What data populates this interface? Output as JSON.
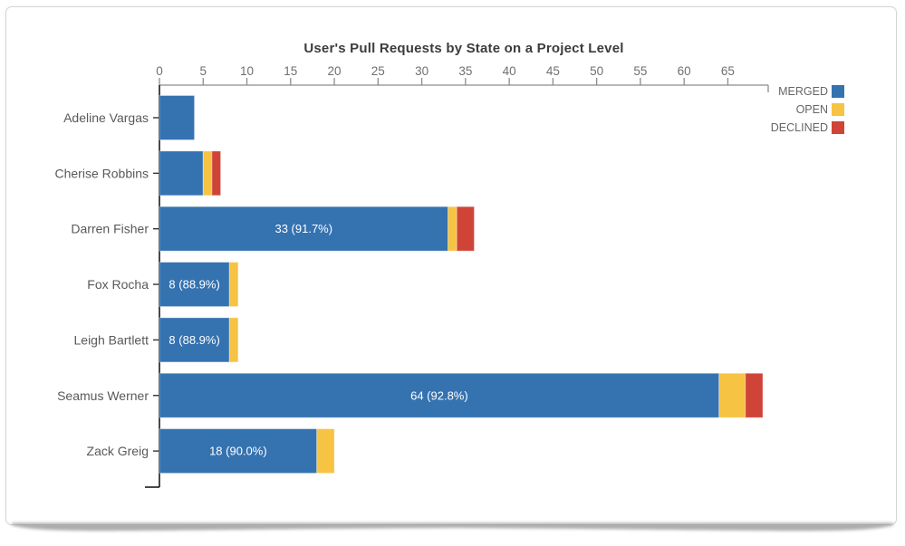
{
  "chart": {
    "title": "User's Pull Requests by State on a Project Level"
  },
  "chart_data": {
    "type": "bar",
    "orientation": "horizontal",
    "stacked": true,
    "title": "User's Pull Requests by State on a Project Level",
    "categories": [
      "Adeline Vargas",
      "Cherise Robbins",
      "Darren Fisher",
      "Fox Rocha",
      "Leigh Bartlett",
      "Seamus Werner",
      "Zack Greig"
    ],
    "series": [
      {
        "name": "MERGED",
        "color": "#3572b0",
        "values": [
          4,
          5,
          33,
          8,
          8,
          64,
          18
        ]
      },
      {
        "name": "OPEN",
        "color": "#f6c342",
        "values": [
          0,
          1,
          1,
          1,
          1,
          3,
          2
        ]
      },
      {
        "name": "DECLINED",
        "color": "#d04437",
        "values": [
          0,
          1,
          2,
          0,
          0,
          2,
          0
        ]
      }
    ],
    "totals": [
      4,
      7,
      36,
      9,
      9,
      69,
      20
    ],
    "bar_labels": [
      "",
      "",
      "33 (91.7%)",
      "8 (88.9%)",
      "8 (88.9%)",
      "64 (92.8%)",
      "18 (90.0%)"
    ],
    "xticks": [
      0,
      5,
      10,
      15,
      20,
      25,
      30,
      35,
      40,
      45,
      50,
      55,
      60,
      65
    ],
    "xlim": [
      0,
      69.6
    ],
    "grid": false,
    "legend_position": "top-right",
    "axis_colors": {
      "x_line": "#8c8c8c",
      "x_text": "#6f6f6f",
      "y_line": "#1a1a1a",
      "y_text": "#595959"
    },
    "bar_label_color": "#ffffff"
  }
}
